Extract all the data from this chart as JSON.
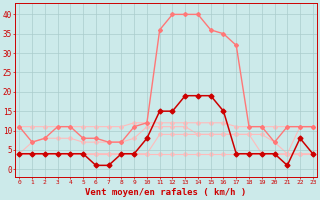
{
  "x": [
    0,
    1,
    2,
    3,
    4,
    5,
    6,
    7,
    8,
    9,
    10,
    11,
    12,
    13,
    14,
    15,
    16,
    17,
    18,
    19,
    20,
    21,
    22,
    23
  ],
  "wind_avg": [
    4,
    4,
    4,
    4,
    4,
    4,
    1,
    1,
    4,
    4,
    8,
    15,
    15,
    19,
    19,
    19,
    15,
    4,
    4,
    4,
    4,
    1,
    8,
    4
  ],
  "wind_gust": [
    11,
    7,
    8,
    11,
    11,
    8,
    8,
    7,
    7,
    11,
    12,
    36,
    40,
    40,
    40,
    36,
    35,
    32,
    11,
    11,
    7,
    11,
    11,
    11
  ],
  "wind_extra1": [
    11,
    11,
    11,
    11,
    11,
    11,
    11,
    11,
    11,
    12,
    12,
    12,
    12,
    12,
    12,
    12,
    12,
    11,
    11,
    11,
    11,
    11,
    11,
    11
  ],
  "wind_extra2": [
    4,
    7,
    8,
    8,
    8,
    7,
    7,
    7,
    7,
    8,
    11,
    11,
    11,
    11,
    9,
    9,
    9,
    9,
    9,
    9,
    7,
    4,
    11,
    11
  ],
  "wind_extra3": [
    4,
    4,
    4,
    4,
    4,
    4,
    4,
    4,
    4,
    4,
    4,
    9,
    9,
    9,
    9,
    9,
    9,
    9,
    9,
    4,
    4,
    4,
    4,
    4
  ],
  "wind_extra4": [
    4,
    4,
    4,
    4,
    4,
    4,
    4,
    4,
    4,
    4,
    4,
    4,
    4,
    4,
    4,
    4,
    4,
    4,
    4,
    4,
    4,
    4,
    4,
    4
  ],
  "background_color": "#cceaea",
  "grid_color": "#aacccc",
  "color_dark_red": "#cc0000",
  "color_mid_red": "#ff7777",
  "color_light_red": "#ffbbbb",
  "xlabel": "Vent moyen/en rafales ( km/h )",
  "yticks": [
    0,
    5,
    10,
    15,
    20,
    25,
    30,
    35,
    40
  ],
  "ylim": [
    -2,
    43
  ],
  "xlim": [
    -0.3,
    23.3
  ]
}
